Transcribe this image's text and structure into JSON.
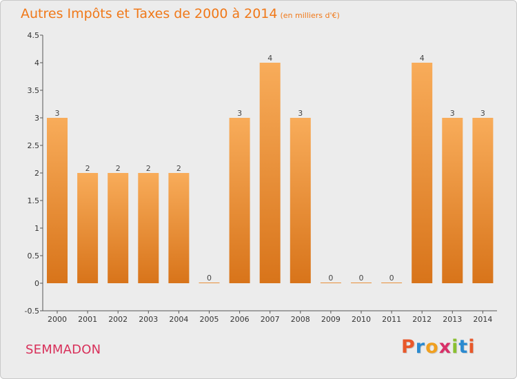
{
  "title": "Autres Impôts et Taxes de 2000 à 2014",
  "title_unit": "(en milliers d'€)",
  "commune": "SEMMADON",
  "logo_text": "Proxiti",
  "colors": {
    "bar_light": "#f8ac5a",
    "bar_dark": "#d8741a",
    "title": "#f07818",
    "commune": "#d8305a"
  },
  "chart_data": {
    "type": "bar",
    "title": "Autres Impôts et Taxes de 2000 à 2014",
    "ylabel": "",
    "xlabel": "",
    "ylim": [
      -0.5,
      4.5
    ],
    "grid": false,
    "categories": [
      "2000",
      "2001",
      "2002",
      "2003",
      "2004",
      "2005",
      "2006",
      "2007",
      "2008",
      "2009",
      "2010",
      "2011",
      "2012",
      "2013",
      "2014"
    ],
    "values": [
      3,
      2,
      2,
      2,
      2,
      0,
      3,
      4,
      3,
      0,
      0,
      0,
      4,
      3,
      3
    ],
    "yticks": [
      "-0.5",
      "0",
      "0.5",
      "1",
      "1.5",
      "2",
      "2.5",
      "3",
      "3.5",
      "4",
      "4.5"
    ]
  }
}
